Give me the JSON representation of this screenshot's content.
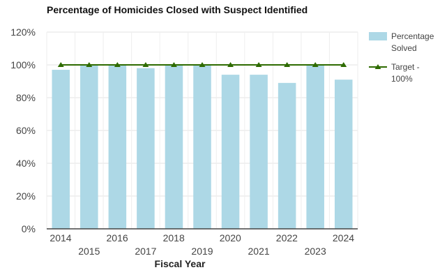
{
  "chart_data": {
    "type": "bar",
    "title": "Percentage of Homicides Closed with Suspect Identified",
    "xlabel": "Fiscal Year",
    "ylabel": "",
    "categories": [
      "2014",
      "2015",
      "2016",
      "2017",
      "2018",
      "2019",
      "2020",
      "2021",
      "2022",
      "2023",
      "2024"
    ],
    "ylim": [
      0,
      120
    ],
    "yticks": [
      "0%",
      "20%",
      "40%",
      "60%",
      "80%",
      "100%",
      "120%"
    ],
    "grid": true,
    "legend_position": "right",
    "series": [
      {
        "name": "Percentage Solved",
        "type": "bar",
        "color": "#add8e6",
        "values": [
          97,
          100,
          100,
          98,
          100,
          100,
          94,
          94,
          89,
          100,
          91
        ]
      },
      {
        "name": "Target - 100%",
        "type": "line",
        "color": "#2e6b00",
        "marker": "triangle",
        "values": [
          100,
          100,
          100,
          100,
          100,
          100,
          100,
          100,
          100,
          100,
          100
        ]
      }
    ]
  }
}
